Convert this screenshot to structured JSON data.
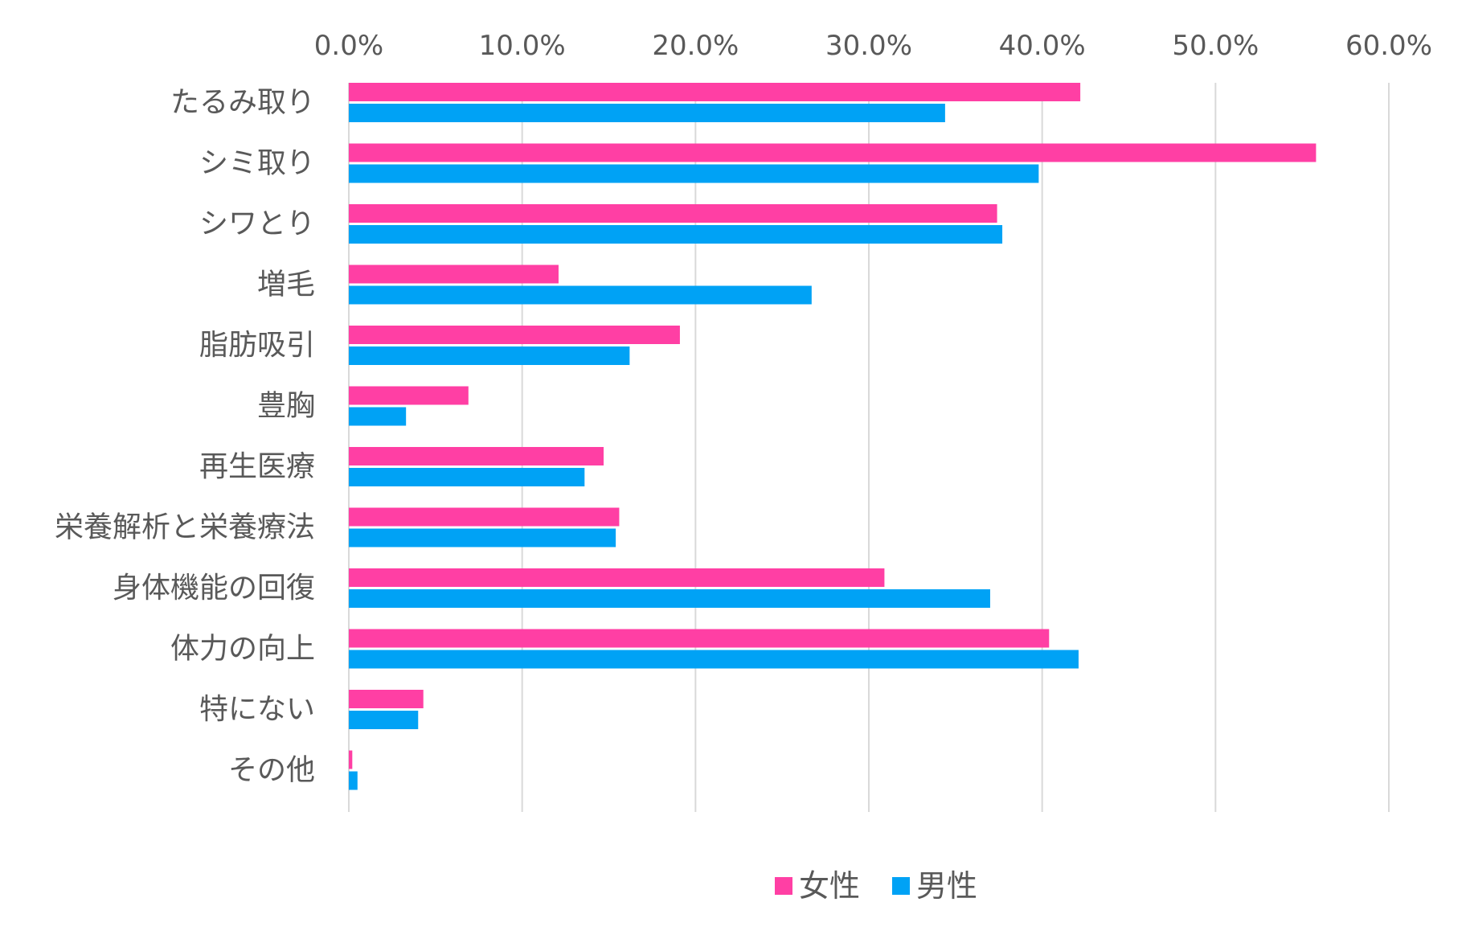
{
  "chart_data": {
    "type": "bar",
    "orientation": "horizontal",
    "categories": [
      "たるみ取り",
      "シミ取り",
      "シワとり",
      "増毛",
      "脂肪吸引",
      "豊胸",
      "再生医療",
      "栄養解析と栄養療法",
      "身体機能の回復",
      "体力の向上",
      "特にない",
      "その他"
    ],
    "series": [
      {
        "name": "女性",
        "color": "#ff3fa4",
        "values": [
          42.2,
          55.8,
          37.4,
          12.1,
          19.1,
          6.9,
          14.7,
          15.6,
          30.9,
          40.4,
          4.3,
          0.2
        ]
      },
      {
        "name": "男性",
        "color": "#00a2f5",
        "values": [
          34.4,
          39.8,
          37.7,
          26.7,
          16.2,
          3.3,
          13.6,
          15.4,
          37.0,
          42.1,
          4.0,
          0.5
        ]
      }
    ],
    "x_ticks": [
      "0.0%",
      "10.0%",
      "20.0%",
      "30.0%",
      "40.0%",
      "50.0%",
      "60.0%"
    ],
    "xlim": [
      0,
      60
    ],
    "title": "",
    "xlabel": "",
    "ylabel": "",
    "x_axis_position": "top",
    "grid": "vertical",
    "legend_position": "bottom-center",
    "gridline_color": "#d9d9d9",
    "text_color": "#595959"
  }
}
